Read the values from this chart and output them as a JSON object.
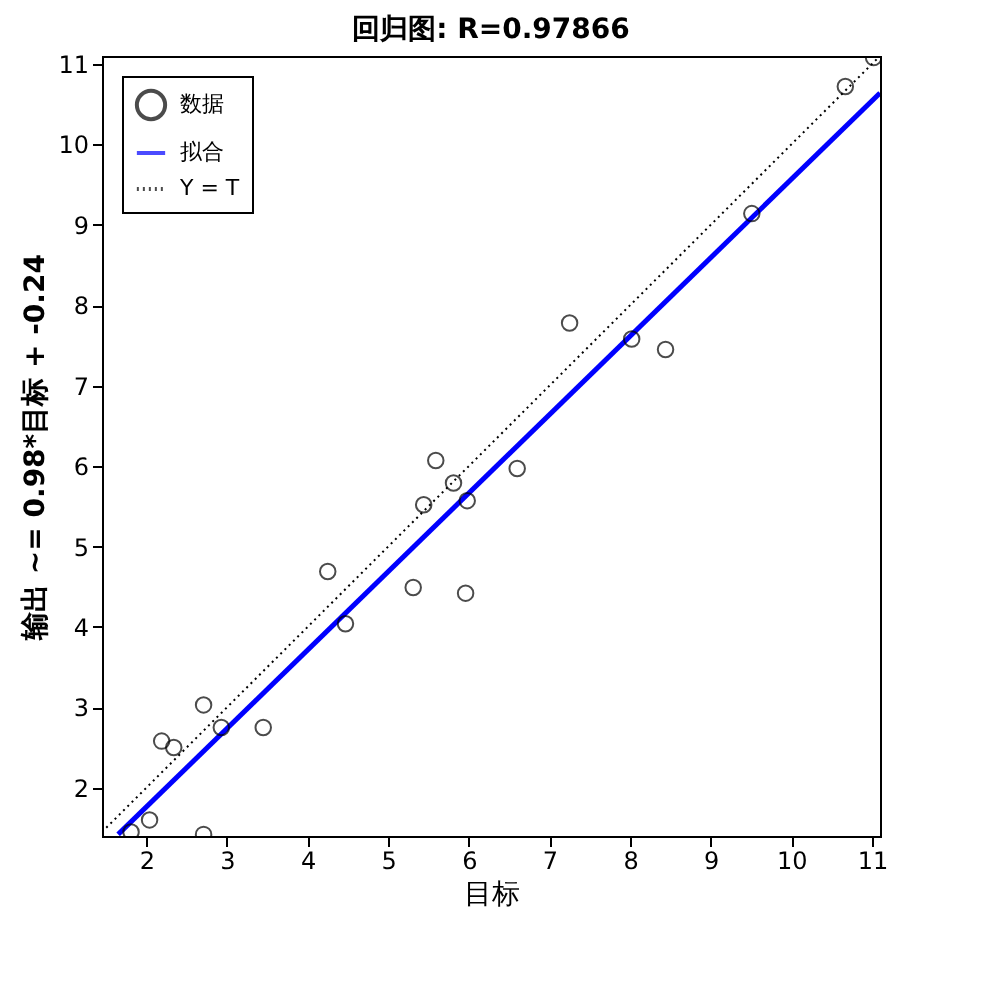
{
  "chart_data": {
    "type": "scatter",
    "title": "回归图: R=0.97866",
    "xlabel": "目标",
    "ylabel": "输出 ~= 0.98*目标 + -0.24",
    "xlim": [
      1.45,
      11.1
    ],
    "ylim": [
      1.4,
      11.1
    ],
    "xticks": [
      2,
      3,
      4,
      5,
      6,
      7,
      8,
      9,
      10,
      11
    ],
    "yticks": [
      2,
      3,
      4,
      5,
      6,
      7,
      8,
      9,
      10,
      11
    ],
    "grid": false,
    "legend": "top left",
    "series": [
      {
        "name": "数据",
        "marker": "circle",
        "color": "#000000",
        "x": [
          1.81,
          2.04,
          2.71,
          2.19,
          2.34,
          2.71,
          2.93,
          3.45,
          4.25,
          4.47,
          5.31,
          5.44,
          5.59,
          5.81,
          5.98,
          5.96,
          6.6,
          7.25,
          8.02,
          8.44,
          9.51,
          10.67,
          11.02
        ],
        "values": [
          1.45,
          1.6,
          1.42,
          2.58,
          2.5,
          3.03,
          2.75,
          2.75,
          4.69,
          4.04,
          4.49,
          5.52,
          6.07,
          5.79,
          5.57,
          4.42,
          5.97,
          7.78,
          7.58,
          7.45,
          9.14,
          10.72,
          11.08
        ]
      },
      {
        "name": "拟合",
        "type": "line",
        "color": "#0000ff",
        "line_style": "solid",
        "marker": "none",
        "x": [
          1.65,
          11.1
        ],
        "values": [
          1.42,
          10.64
        ]
      },
      {
        "name": "Y = T",
        "type": "line",
        "color": "#000000",
        "line_style": "dotted",
        "marker": "none",
        "x": [
          1.45,
          11.1
        ],
        "values": [
          1.45,
          11.1
        ]
      }
    ]
  }
}
